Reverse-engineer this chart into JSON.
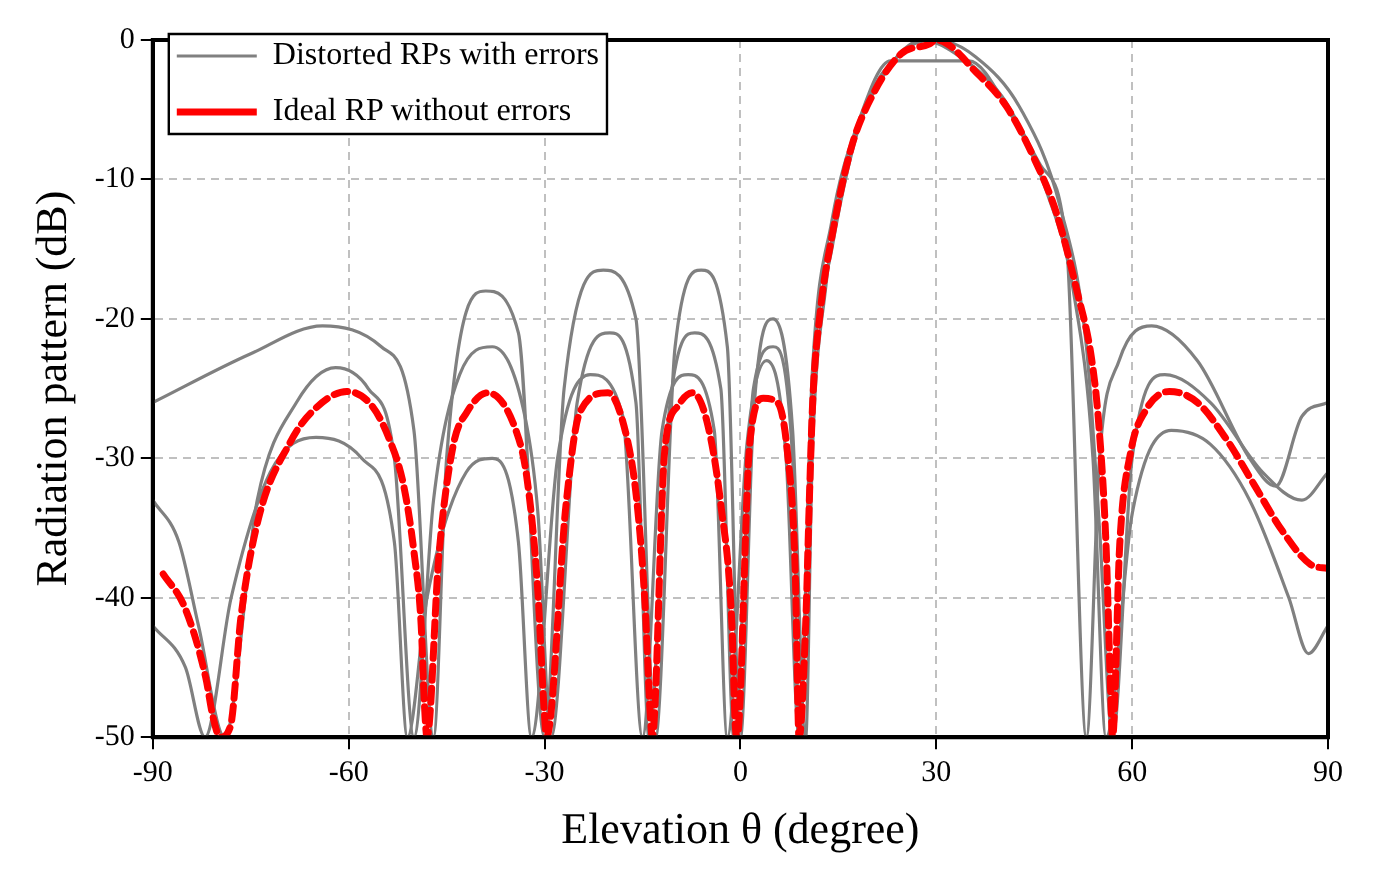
{
  "chart_data": {
    "type": "line",
    "xlabel": "Elevation θ (degree)",
    "ylabel": "Radiation pattern (dB)",
    "xlim": [
      -90,
      90
    ],
    "xticks": [
      -90,
      -60,
      -30,
      0,
      30,
      60,
      90
    ],
    "ylim": [
      -50,
      0
    ],
    "yticks": [
      -50,
      -40,
      -30,
      -20,
      -10,
      0
    ],
    "grid": true,
    "legend": "top left",
    "marker": "none",
    "series": [
      {
        "name": "Distorted RPs with errors",
        "color": "#808080",
        "line_style": "solid",
        "x": [
          -90,
          -75,
          -64,
          -55,
          -50,
          -47,
          -45,
          -39,
          -34,
          -30,
          -27,
          -21,
          -16,
          -13,
          -10,
          -6,
          -2,
          0,
          2,
          5,
          8,
          10,
          11,
          13,
          17,
          22,
          28,
          33,
          40,
          46,
          50,
          53,
          55,
          58,
          63,
          70,
          78,
          82,
          86,
          90
        ],
        "values": [
          -26,
          -22.5,
          -20.5,
          -22,
          -28,
          -50,
          -30,
          -18,
          -21,
          -50,
          -25,
          -16.5,
          -20,
          -50,
          -22,
          -16.5,
          -22,
          -50,
          -27,
          -20,
          -28,
          -50,
          -30,
          -18,
          -8,
          -2.5,
          0,
          -1,
          -4,
          -9,
          -15,
          -50,
          -30,
          -23,
          -20.5,
          -23,
          -30,
          -32,
          -27,
          -26
        ]
      },
      {
        "color": "#808080",
        "line_style": "solid",
        "x": [
          -90,
          -85,
          -82,
          -78,
          -72,
          -65,
          -58,
          -53,
          -51,
          -48,
          -42,
          -38,
          -34,
          -32,
          -28,
          -23,
          -18,
          -15,
          -12,
          -8,
          -4,
          -2,
          1,
          4,
          7,
          9,
          11,
          14,
          18,
          23,
          29,
          35,
          41,
          47,
          51,
          54,
          56,
          60,
          66,
          72,
          78,
          84,
          87,
          90
        ],
        "values": [
          -42,
          -45,
          -50,
          -40,
          -31,
          -28.5,
          -30,
          -36,
          -50,
          -40,
          -31,
          -30,
          -36,
          -50,
          -30,
          -24,
          -27,
          -50,
          -28,
          -24,
          -28,
          -50,
          -29,
          -23,
          -30,
          -50,
          -24,
          -13,
          -6,
          -1.5,
          null,
          -1.5,
          -5,
          -11,
          -18,
          -30,
          -50,
          -34,
          -28,
          -29,
          -33,
          -40,
          -44,
          -42
        ]
      },
      {
        "color": "#808080",
        "line_style": "solid",
        "x": [
          -90,
          -86,
          -83,
          -79,
          -74,
          -68,
          -62,
          -57,
          -53,
          -50,
          -47,
          -43,
          -38,
          -33,
          -31,
          -29,
          -25,
          -20,
          -16,
          -14,
          -11,
          -7,
          -3,
          -1,
          2,
          5,
          8,
          9,
          11,
          14,
          19,
          25,
          30,
          36,
          43,
          49,
          53,
          55,
          57,
          60,
          65,
          72,
          80,
          86,
          90
        ],
        "values": [
          -33,
          -36,
          -42,
          -50,
          -33,
          -26,
          -23.5,
          -25,
          -30,
          -50,
          -33,
          -24,
          -22,
          -27,
          -34,
          -50,
          -26,
          -21,
          -26,
          -50,
          -27,
          -21,
          -25,
          -50,
          -25,
          -22,
          -30,
          -50,
          -25,
          -15,
          -5,
          -0.8,
          0,
          -1.2,
          -5,
          -12,
          -22,
          -35,
          -50,
          -30,
          -24,
          -26,
          -31,
          -33,
          -31
        ]
      },
      {
        "name": "Ideal RP without errors",
        "color": "#ff0000",
        "line_style": "dashed",
        "x": [
          -88.4,
          -85.1,
          -81.9,
          -80.8,
          -79.7,
          -78.1,
          -76.5,
          -73.8,
          -68.9,
          -65.7,
          -60.3,
          -56.5,
          -53.8,
          -51.6,
          -50,
          -48.9,
          -48.4,
          -48,
          -46.2,
          -44,
          -41.9,
          -38.7,
          -34.3,
          -32.7,
          -31.1,
          -30,
          -29.7,
          -26.7,
          -24.6,
          -20.3,
          -17.6,
          -15.9,
          -14.6,
          -13.8,
          -13.5,
          -11.6,
          -9.5,
          -7.3,
          -5.1,
          -3,
          -1.3,
          -0.8,
          -0.5,
          1.4,
          3.5,
          5.7,
          7.3,
          8.4,
          8.9,
          9,
          10,
          10.6,
          11.1,
          12.2,
          14.3,
          17,
          20.3,
          24.6,
          28.9,
          30,
          36.5,
          40.8,
          45.1,
          48.4,
          51.6,
          53.8,
          54.9,
          56,
          56.7,
          57,
          58.1,
          59.8,
          61.9,
          65.7,
          70,
          74.4,
          78.7,
          83,
          87.3,
          90
        ],
        "values": [
          -38.3,
          -40.7,
          -45.7,
          -48.5,
          -50,
          -49.2,
          -41.4,
          -34.3,
          -28.8,
          -26.7,
          -25.2,
          -26.2,
          -28.6,
          -31.9,
          -36.7,
          -41.9,
          -47.6,
          -50,
          -37.1,
          -29.1,
          -26.7,
          -25.3,
          -28.1,
          -31.4,
          -39,
          -48.5,
          -50,
          -33.3,
          -26.7,
          -25.3,
          -28.1,
          -32.9,
          -40.5,
          -48.5,
          -50,
          -29.5,
          -26.2,
          -25.3,
          -27.4,
          -33.3,
          -41.9,
          -49,
          -50,
          -29.1,
          -25.7,
          -26,
          -30,
          -38.1,
          -49.5,
          -50,
          -41.9,
          -32.4,
          -25.7,
          -19.6,
          -13.4,
          -7.7,
          -3.9,
          -1,
          -0.3,
          0,
          -2.5,
          -4.8,
          -8.6,
          -12.4,
          -18.1,
          -22.9,
          -27.6,
          -36.2,
          -46.6,
          -50,
          -36.2,
          -29.5,
          -26.7,
          -25.2,
          -26,
          -28.6,
          -31.9,
          -35.2,
          -37.6,
          -37.9
        ]
      }
    ]
  }
}
